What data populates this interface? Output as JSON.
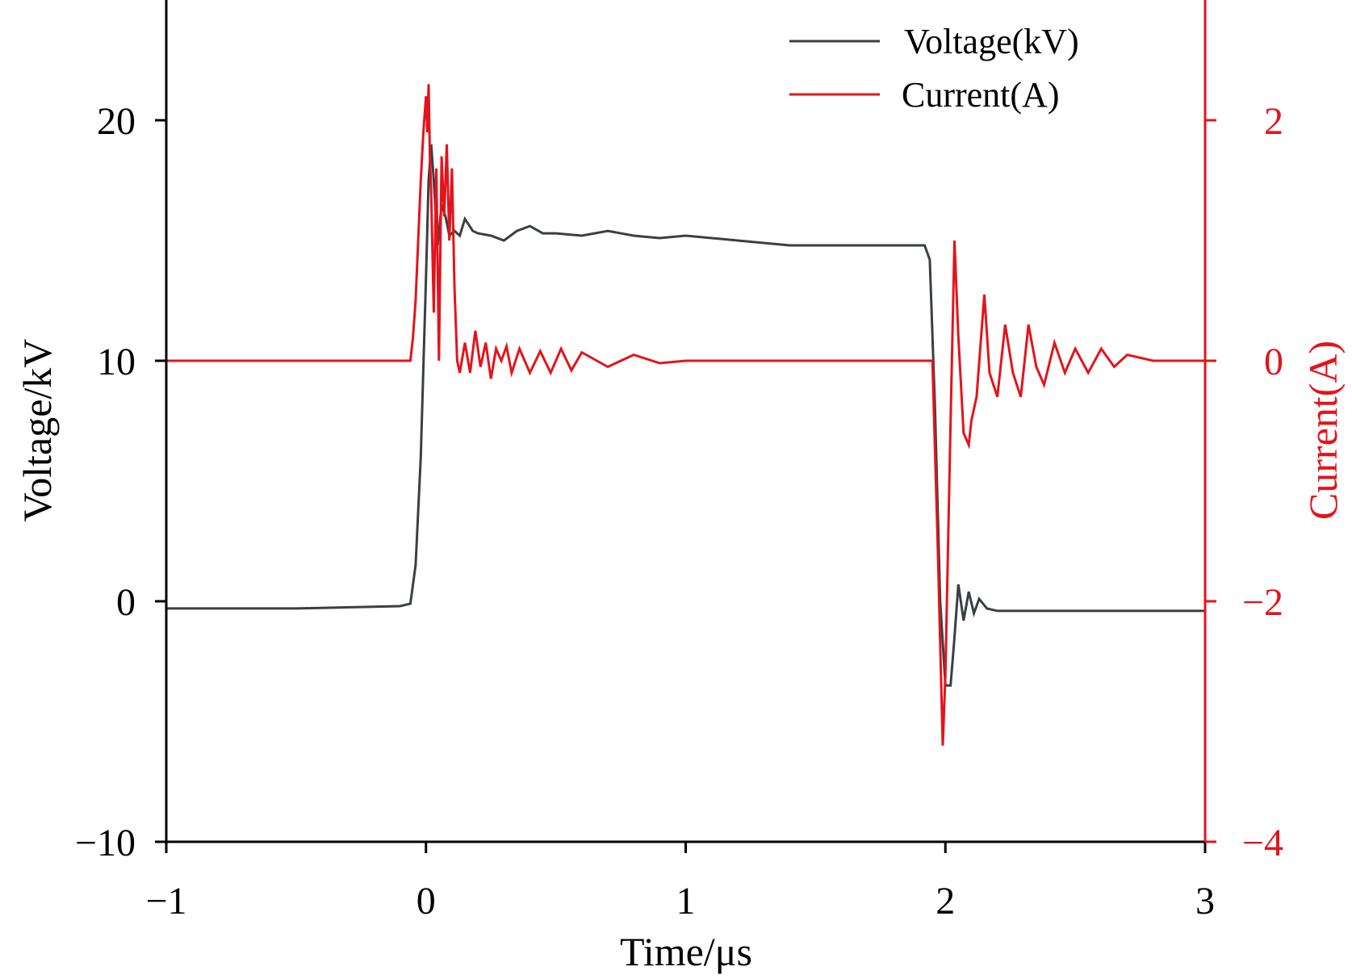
{
  "chart_data": {
    "type": "line",
    "xlabel": "Time/μs",
    "ylabel_left": "Voltage/kV",
    "ylabel_right": "Current(A)",
    "xlim": [
      -1,
      3
    ],
    "ylim_left": [
      -10,
      25
    ],
    "ylim_right": [
      -4,
      3
    ],
    "x_ticks": [
      -1,
      0,
      1,
      2,
      3
    ],
    "x_tick_labels": [
      "−1",
      "0",
      "1",
      "2",
      "3"
    ],
    "y_left_ticks": [
      -10,
      0,
      10,
      20
    ],
    "y_left_tick_labels": [
      "−10",
      "0",
      "10",
      "20"
    ],
    "y_right_ticks": [
      -4,
      -2,
      0,
      2
    ],
    "y_right_tick_labels": [
      "−4",
      "−2",
      "0",
      "2"
    ],
    "grid": false,
    "legend_position": "top-right",
    "colors": {
      "voltage": "#3a3f42",
      "current": "#e3141c",
      "axis": "#000000"
    },
    "series": [
      {
        "name": "Voltage(kV)",
        "axis": "left",
        "x": [
          -1.0,
          -0.5,
          -0.1,
          -0.06,
          -0.04,
          -0.02,
          0.0,
          0.01,
          0.02,
          0.03,
          0.045,
          0.06,
          0.075,
          0.09,
          0.11,
          0.13,
          0.15,
          0.18,
          0.2,
          0.25,
          0.3,
          0.35,
          0.4,
          0.45,
          0.5,
          0.6,
          0.7,
          0.8,
          0.9,
          1.0,
          1.2,
          1.4,
          1.6,
          1.8,
          1.92,
          1.94,
          1.96,
          1.98,
          2.0,
          2.02,
          2.035,
          2.05,
          2.07,
          2.09,
          2.11,
          2.13,
          2.16,
          2.2,
          2.3,
          2.5,
          3.0
        ],
        "y": [
          -0.3,
          -0.3,
          -0.2,
          -0.1,
          1.5,
          6.0,
          13.5,
          17.5,
          19.0,
          17.5,
          14.8,
          16.5,
          16.0,
          15.2,
          15.4,
          15.2,
          15.9,
          15.4,
          15.3,
          15.2,
          15.0,
          15.4,
          15.6,
          15.3,
          15.3,
          15.2,
          15.4,
          15.2,
          15.1,
          15.2,
          15.0,
          14.8,
          14.8,
          14.8,
          14.8,
          14.2,
          8.0,
          0.0,
          -3.5,
          -3.5,
          -1.5,
          0.7,
          -0.8,
          0.4,
          -0.5,
          0.1,
          -0.3,
          -0.4,
          -0.4,
          -0.4,
          -0.4
        ]
      },
      {
        "name": "Current(A)",
        "axis": "right",
        "x": [
          -1.0,
          -0.5,
          -0.06,
          -0.05,
          -0.04,
          -0.03,
          -0.02,
          -0.01,
          0.0,
          0.005,
          0.01,
          0.015,
          0.02,
          0.03,
          0.04,
          0.05,
          0.06,
          0.07,
          0.08,
          0.09,
          0.1,
          0.11,
          0.12,
          0.13,
          0.15,
          0.17,
          0.19,
          0.21,
          0.23,
          0.25,
          0.27,
          0.29,
          0.31,
          0.33,
          0.36,
          0.4,
          0.44,
          0.48,
          0.52,
          0.56,
          0.6,
          0.7,
          0.8,
          0.9,
          1.0,
          1.5,
          1.9,
          1.95,
          1.97,
          1.99,
          2.0,
          2.02,
          2.035,
          2.05,
          2.07,
          2.09,
          2.1,
          2.12,
          2.15,
          2.17,
          2.2,
          2.23,
          2.26,
          2.29,
          2.32,
          2.35,
          2.38,
          2.42,
          2.46,
          2.5,
          2.55,
          2.6,
          2.65,
          2.7,
          2.8,
          3.0
        ],
        "y": [
          0.0,
          0.0,
          0.0,
          0.2,
          0.5,
          1.0,
          1.5,
          1.9,
          2.2,
          1.9,
          2.3,
          1.7,
          1.4,
          0.4,
          1.6,
          0.0,
          1.7,
          1.2,
          1.8,
          1.0,
          1.6,
          0.6,
          0.0,
          -0.1,
          0.15,
          -0.1,
          0.25,
          -0.05,
          0.15,
          -0.15,
          0.1,
          0.0,
          0.12,
          -0.1,
          0.1,
          -0.1,
          0.08,
          -0.1,
          0.1,
          -0.08,
          0.07,
          -0.05,
          0.05,
          -0.02,
          0.0,
          0.0,
          0.0,
          0.0,
          -1.5,
          -3.2,
          -2.6,
          -0.5,
          1.0,
          0.2,
          -0.6,
          -0.7,
          -0.5,
          -0.3,
          0.55,
          -0.1,
          -0.3,
          0.3,
          -0.1,
          -0.3,
          0.3,
          -0.05,
          -0.2,
          0.15,
          -0.1,
          0.1,
          -0.1,
          0.1,
          -0.05,
          0.05,
          0.0,
          0.0
        ]
      }
    ]
  }
}
